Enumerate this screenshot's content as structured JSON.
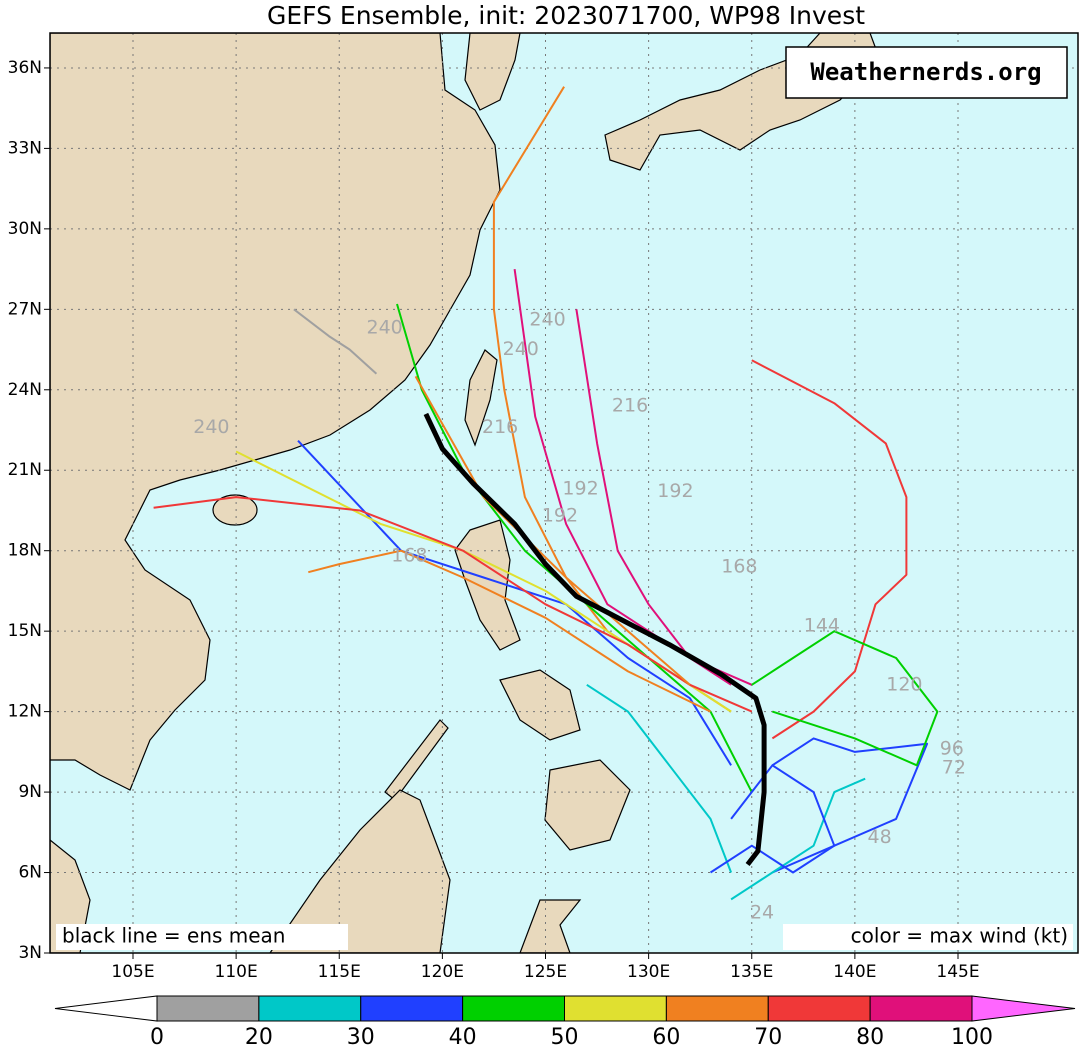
{
  "header": {
    "title": "GEFS Ensemble, init: 2023071700, WP98 Invest"
  },
  "map": {
    "watermark": "Weathernerds.org",
    "legend_left": "black line = ens mean",
    "legend_right": "color = max wind (kt)",
    "lat_ticks": [
      {
        "value": 3,
        "label": "3N"
      },
      {
        "value": 6,
        "label": "6N"
      },
      {
        "value": 9,
        "label": "9N"
      },
      {
        "value": 12,
        "label": "12N"
      },
      {
        "value": 15,
        "label": "15N"
      },
      {
        "value": 18,
        "label": "18N"
      },
      {
        "value": 21,
        "label": "21N"
      },
      {
        "value": 24,
        "label": "24N"
      },
      {
        "value": 27,
        "label": "27N"
      },
      {
        "value": 30,
        "label": "30N"
      },
      {
        "value": 33,
        "label": "33N"
      },
      {
        "value": 36,
        "label": "36N"
      }
    ],
    "lon_ticks": [
      {
        "value": 105,
        "label": "105E"
      },
      {
        "value": 110,
        "label": "110E"
      },
      {
        "value": 115,
        "label": "115E"
      },
      {
        "value": 120,
        "label": "120E"
      },
      {
        "value": 125,
        "label": "125E"
      },
      {
        "value": 130,
        "label": "130E"
      },
      {
        "value": 135,
        "label": "135E"
      },
      {
        "value": 140,
        "label": "140E"
      },
      {
        "value": 145,
        "label": "145E"
      }
    ],
    "mean_track": {
      "color": "#000000",
      "lon": [
        134.8,
        135.3,
        135.6,
        135.6,
        135.2,
        133.5,
        131.0,
        128.0,
        126.5,
        125.0,
        123.5,
        121.5,
        120.0,
        119.2
      ],
      "lat": [
        6.3,
        6.8,
        9.0,
        11.5,
        12.5,
        13.4,
        14.5,
        15.7,
        16.3,
        17.5,
        19.0,
        20.5,
        21.8,
        23.1
      ]
    },
    "tracks": [
      {
        "color": "#f08020",
        "lon": [
          134,
          131,
          128,
          126,
          124,
          123,
          122.5,
          122.5,
          125.9
        ],
        "lat": [
          12,
          13.5,
          15,
          17,
          20,
          24,
          27,
          31,
          35.3
        ]
      },
      {
        "color": "#f03838",
        "lon": [
          136,
          138,
          140,
          141,
          142.5,
          142.5,
          141.5,
          139,
          135
        ],
        "lat": [
          11,
          12,
          13.5,
          16,
          17.1,
          20,
          22,
          23.5,
          25.1
        ]
      },
      {
        "color": "#e0107a",
        "lon": [
          134,
          131,
          128,
          126,
          124.5,
          123.5
        ],
        "lat": [
          13,
          14.5,
          16,
          19,
          23,
          28.5
        ]
      },
      {
        "color": "#e0107a",
        "lon": [
          135,
          132,
          130,
          128.5,
          127.5,
          126.5
        ],
        "lat": [
          13,
          14,
          16,
          18,
          22,
          27
        ]
      },
      {
        "color": "#00d000",
        "lon": [
          135,
          133,
          130,
          127,
          124,
          121,
          119,
          117.8
        ],
        "lat": [
          9,
          12,
          14,
          16,
          18,
          21,
          24,
          27.2
        ]
      },
      {
        "color": "#2040ff",
        "lon": [
          134,
          132,
          129,
          126,
          122,
          118,
          113
        ],
        "lat": [
          10,
          12.5,
          14,
          16,
          17,
          18,
          22.1
        ]
      },
      {
        "color": "#e0e030",
        "lon": [
          134,
          131,
          128,
          125,
          121,
          117,
          110
        ],
        "lat": [
          12,
          13.5,
          15,
          16.5,
          18,
          19,
          21.7
        ]
      },
      {
        "color": "#f03838",
        "lon": [
          135,
          132,
          129,
          125,
          121,
          116,
          110,
          106
        ],
        "lat": [
          12,
          13,
          14.5,
          16,
          18,
          19.5,
          20,
          19.6
        ]
      },
      {
        "color": "#f08020",
        "lon": [
          133,
          129,
          125,
          121,
          118,
          115,
          113.5
        ],
        "lat": [
          12,
          13.5,
          15.5,
          17,
          18,
          17.5,
          17.2
        ]
      },
      {
        "color": "#00c8c8",
        "lon": [
          134,
          133,
          131,
          129,
          127
        ],
        "lat": [
          6,
          8,
          10,
          12,
          13
        ]
      },
      {
        "color": "#2040ff",
        "lon": [
          136,
          138,
          140,
          143.5,
          142,
          139,
          136
        ],
        "lat": [
          10,
          11,
          10.5,
          10.8,
          8,
          7,
          6
        ]
      },
      {
        "color": "#00d000",
        "lon": [
          136,
          140,
          143,
          144,
          142,
          139,
          137,
          135
        ],
        "lat": [
          12,
          11,
          10,
          12,
          14,
          15,
          14,
          13
        ]
      },
      {
        "color": "#f08020",
        "lon": [
          132,
          129,
          126,
          122,
          118.7
        ],
        "lat": [
          13,
          15,
          17,
          20,
          24.5
        ]
      },
      {
        "color": "#a0a0a0",
        "lon": [
          116.8,
          115.5,
          114.5,
          112.8
        ],
        "lat": [
          24.6,
          25.5,
          26,
          27
        ]
      },
      {
        "color": "#00c8c8",
        "lon": [
          134,
          136,
          138,
          139,
          140.5
        ],
        "lat": [
          5,
          6,
          7,
          9,
          9.5
        ]
      },
      {
        "color": "#2040ff",
        "lon": [
          133,
          135,
          137,
          139,
          138,
          136,
          134
        ],
        "lat": [
          6,
          7,
          6,
          7,
          9,
          10,
          8
        ]
      }
    ],
    "hour_labels": [
      {
        "hour": 240,
        "lon": 117.2,
        "lat": 26.3
      },
      {
        "hour": 240,
        "lon": 108.8,
        "lat": 22.6
      },
      {
        "hour": 240,
        "lon": 125.1,
        "lat": 26.6
      },
      {
        "hour": 240,
        "lon": 123.8,
        "lat": 25.5
      },
      {
        "hour": 216,
        "lon": 129.1,
        "lat": 23.4
      },
      {
        "hour": 216,
        "lon": 122.8,
        "lat": 22.6
      },
      {
        "hour": 192,
        "lon": 131.3,
        "lat": 20.2
      },
      {
        "hour": 192,
        "lon": 126.7,
        "lat": 20.3
      },
      {
        "hour": 192,
        "lon": 125.7,
        "lat": 19.3
      },
      {
        "hour": 168,
        "lon": 118.4,
        "lat": 17.8
      },
      {
        "hour": 168,
        "lon": 134.4,
        "lat": 17.4
      },
      {
        "hour": 144,
        "lon": 138.4,
        "lat": 15.2
      },
      {
        "hour": 120,
        "lon": 142.4,
        "lat": 13.0
      },
      {
        "hour": 96,
        "lon": 144.7,
        "lat": 10.6
      },
      {
        "hour": 72,
        "lon": 144.8,
        "lat": 9.9
      },
      {
        "hour": 48,
        "lon": 141.2,
        "lat": 7.3
      },
      {
        "hour": 24,
        "lon": 135.5,
        "lat": 4.5
      }
    ]
  },
  "colorbar": {
    "boundaries": [
      0,
      20,
      30,
      40,
      50,
      60,
      70,
      80,
      100
    ],
    "colors": [
      "#ffffff",
      "#a0a0a0",
      "#00c8c8",
      "#2040ff",
      "#00d000",
      "#e0e030",
      "#f08020",
      "#f03838",
      "#e0107a",
      "#ff66ff"
    ]
  }
}
